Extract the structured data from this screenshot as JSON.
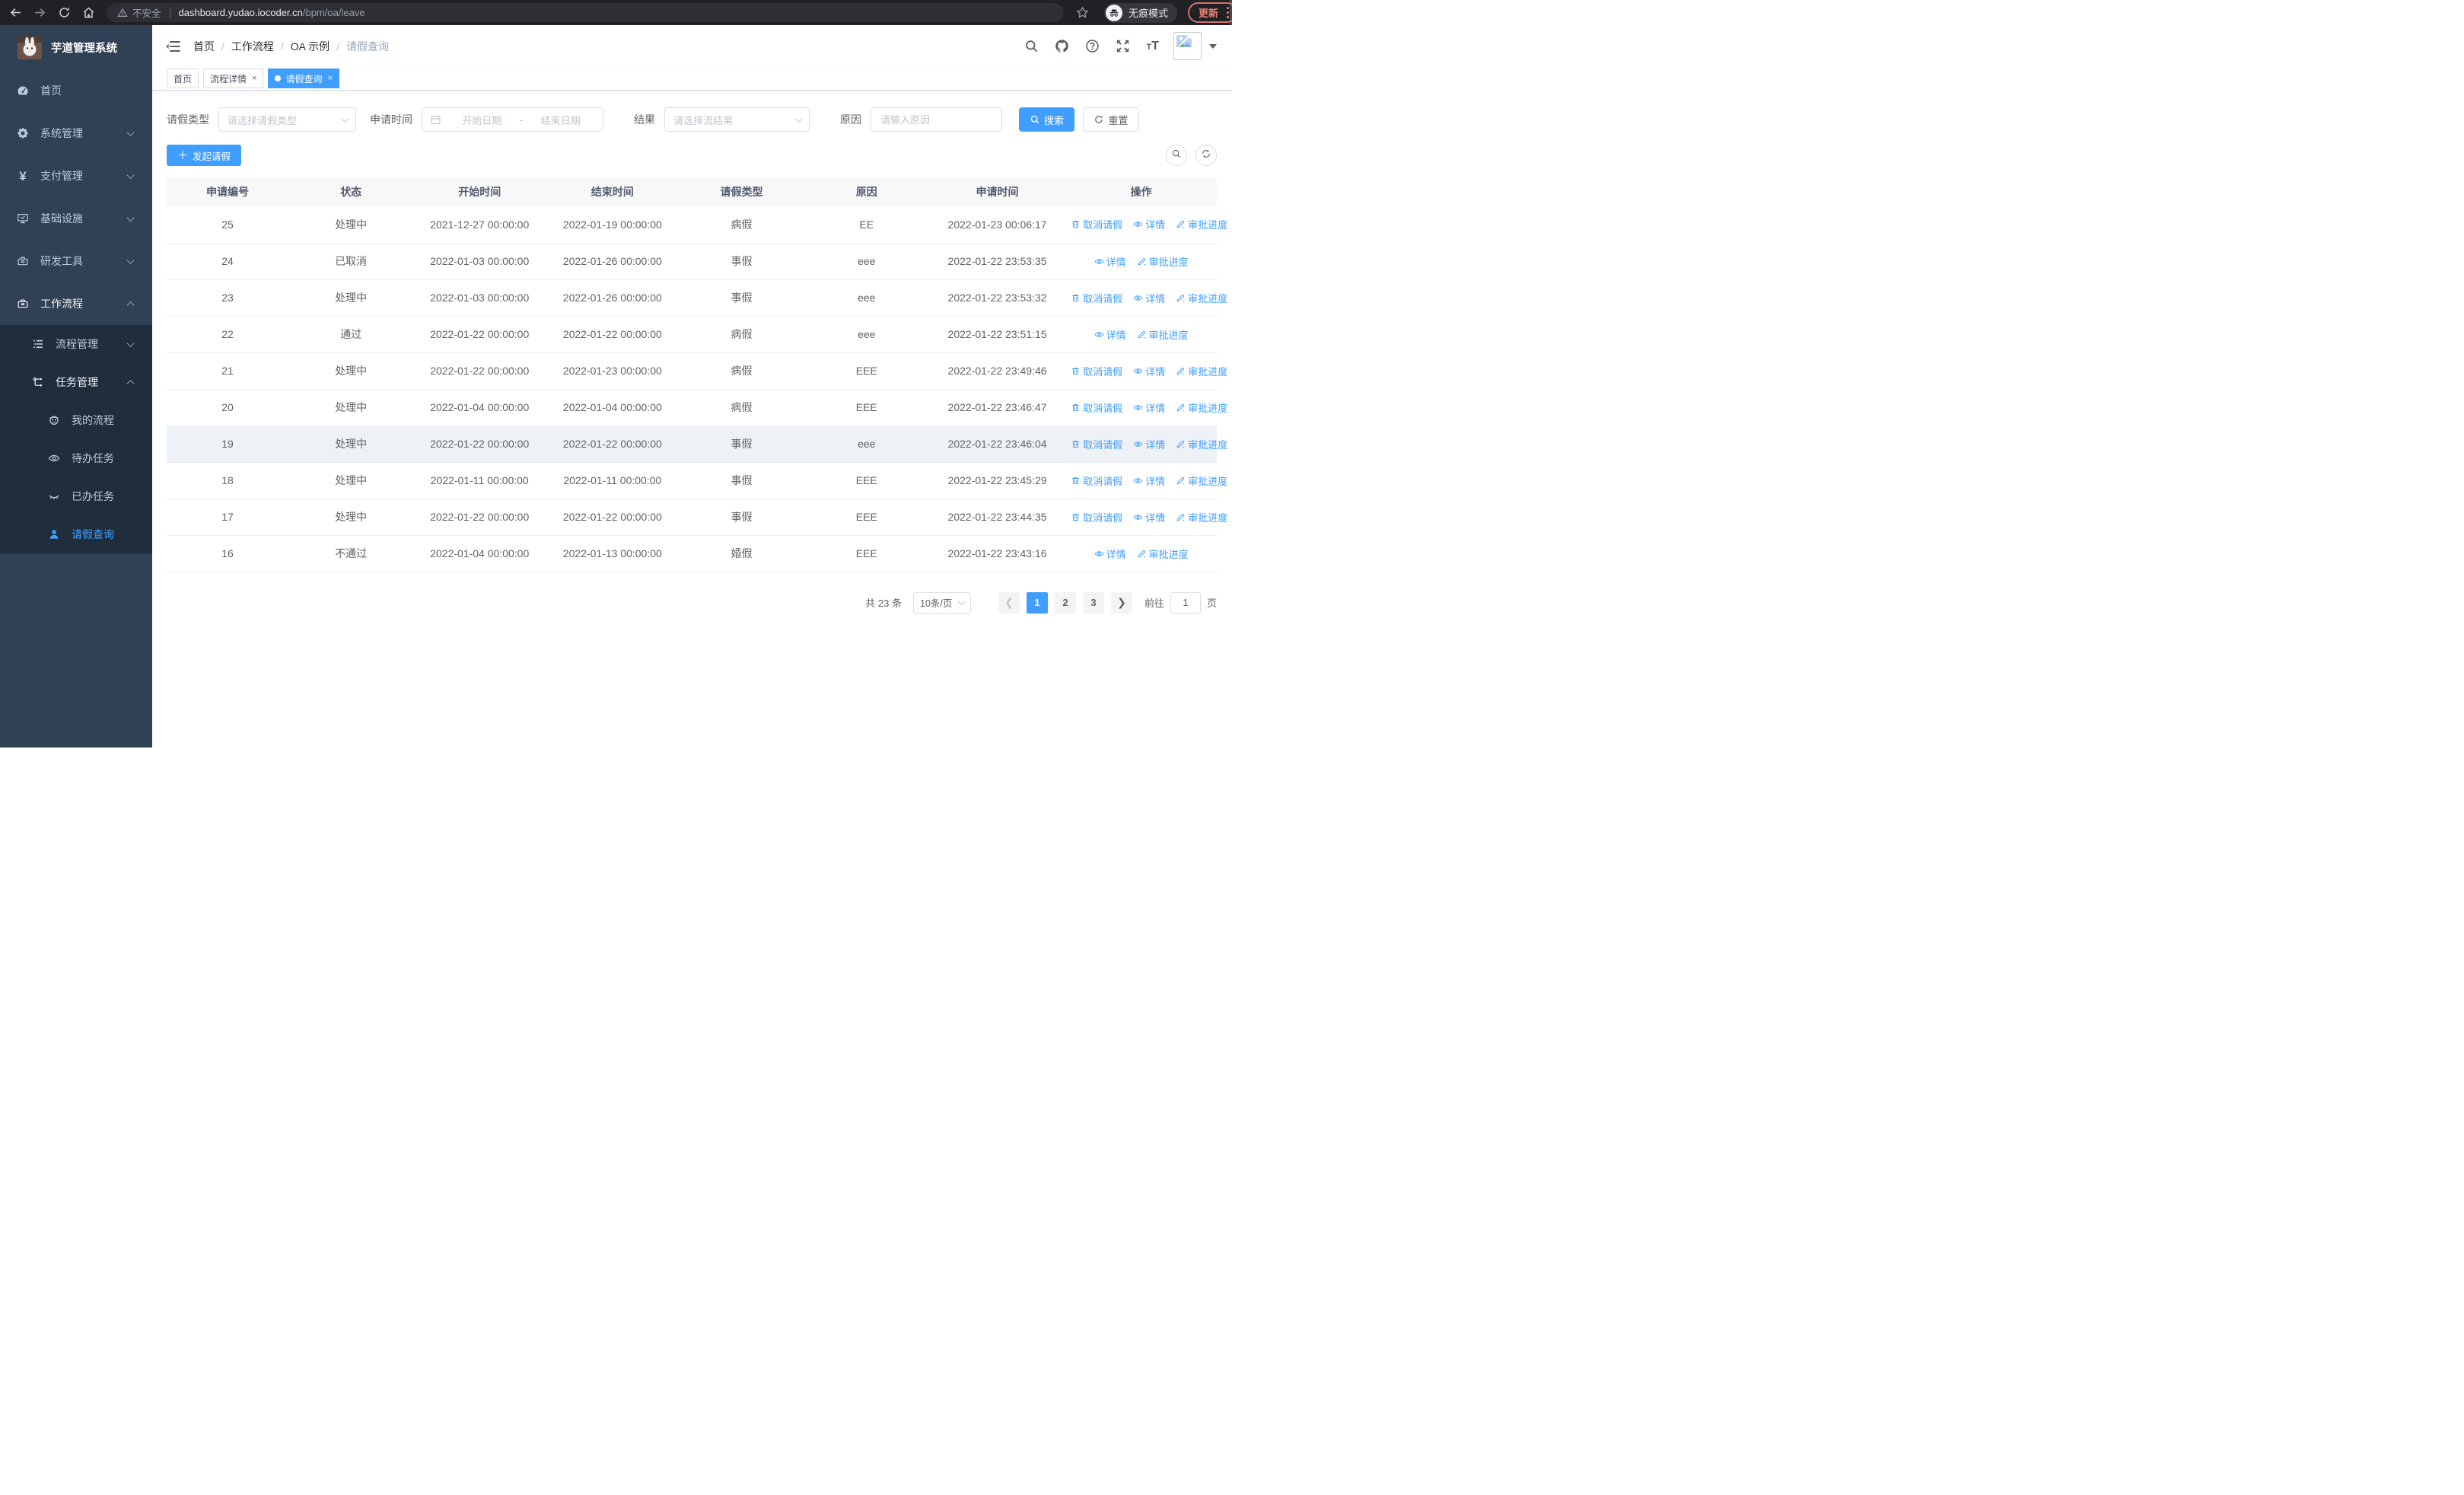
{
  "browser": {
    "security_chip": "不安全",
    "url_host": "dashboard.yudao.iocoder.cn",
    "url_path": "/bpm/oa/leave",
    "incognito_label": "无痕模式",
    "update_label": "更新"
  },
  "sidebar": {
    "title": "芋道管理系统",
    "menu": [
      {
        "label": "首页",
        "icon": "dashboard-icon"
      },
      {
        "label": "系统管理",
        "icon": "gear-icon",
        "chevron": "down"
      },
      {
        "label": "支付管理",
        "icon": "yen-icon",
        "chevron": "down"
      },
      {
        "label": "基础设施",
        "icon": "monitor-icon",
        "chevron": "down"
      },
      {
        "label": "研发工具",
        "icon": "toolbox-icon",
        "chevron": "down"
      },
      {
        "label": "工作流程",
        "icon": "briefcase-icon",
        "chevron": "up",
        "open": true,
        "children": [
          {
            "label": "流程管理",
            "icon": "list-icon",
            "chevron": "down"
          },
          {
            "label": "任务管理",
            "icon": "flow-icon",
            "chevron": "up",
            "open": true,
            "children": [
              {
                "label": "我的流程",
                "icon": "robot-icon"
              },
              {
                "label": "待办任务",
                "icon": "eye-icon"
              },
              {
                "label": "已办任务",
                "icon": "eye-closed-icon"
              },
              {
                "label": "请假查询",
                "icon": "user-icon",
                "active": true
              }
            ]
          }
        ]
      }
    ]
  },
  "header": {
    "breadcrumb": [
      {
        "label": "首页",
        "muted": false
      },
      {
        "label": "工作流程",
        "muted": false
      },
      {
        "label": "OA 示例",
        "muted": false
      },
      {
        "label": "请假查询",
        "muted": true
      }
    ]
  },
  "tabs": [
    {
      "label": "首页",
      "closable": false,
      "active": false
    },
    {
      "label": "流程详情",
      "closable": true,
      "active": false
    },
    {
      "label": "请假查询",
      "closable": true,
      "active": true
    }
  ],
  "filters": {
    "leave_type_label": "请假类型",
    "leave_type_placeholder": "请选择请假类型",
    "apply_time_label": "申请时间",
    "date_start_placeholder": "开始日期",
    "date_separator": "-",
    "date_end_placeholder": "结束日期",
    "result_label": "结果",
    "result_placeholder": "请选择流结果",
    "reason_label": "原因",
    "reason_placeholder": "请输入原因",
    "search_label": "搜索",
    "reset_label": "重置"
  },
  "toolbar": {
    "create_label": "发起请假"
  },
  "table": {
    "columns": [
      "申请编号",
      "状态",
      "开始时间",
      "结束时间",
      "请假类型",
      "原因",
      "申请时间",
      "操作"
    ],
    "action_labels": {
      "cancel": "取消请假",
      "detail": "详情",
      "progress": "审批进度"
    },
    "rows": [
      {
        "id": "25",
        "status": "处理中",
        "start": "2021-12-27 00:00:00",
        "end": "2022-01-19 00:00:00",
        "type": "病假",
        "reason": "EE",
        "applied": "2022-01-23 00:06:17",
        "actions": [
          "cancel",
          "detail",
          "progress"
        ],
        "highlight": false
      },
      {
        "id": "24",
        "status": "已取消",
        "start": "2022-01-03 00:00:00",
        "end": "2022-01-26 00:00:00",
        "type": "事假",
        "reason": "eee",
        "applied": "2022-01-22 23:53:35",
        "actions": [
          "detail",
          "progress"
        ],
        "highlight": false
      },
      {
        "id": "23",
        "status": "处理中",
        "start": "2022-01-03 00:00:00",
        "end": "2022-01-26 00:00:00",
        "type": "事假",
        "reason": "eee",
        "applied": "2022-01-22 23:53:32",
        "actions": [
          "cancel",
          "detail",
          "progress"
        ],
        "highlight": false
      },
      {
        "id": "22",
        "status": "通过",
        "start": "2022-01-22 00:00:00",
        "end": "2022-01-22 00:00:00",
        "type": "病假",
        "reason": "eee",
        "applied": "2022-01-22 23:51:15",
        "actions": [
          "detail",
          "progress"
        ],
        "highlight": false
      },
      {
        "id": "21",
        "status": "处理中",
        "start": "2022-01-22 00:00:00",
        "end": "2022-01-23 00:00:00",
        "type": "病假",
        "reason": "EEE",
        "applied": "2022-01-22 23:49:46",
        "actions": [
          "cancel",
          "detail",
          "progress"
        ],
        "highlight": false
      },
      {
        "id": "20",
        "status": "处理中",
        "start": "2022-01-04 00:00:00",
        "end": "2022-01-04 00:00:00",
        "type": "病假",
        "reason": "EEE",
        "applied": "2022-01-22 23:46:47",
        "actions": [
          "cancel",
          "detail",
          "progress"
        ],
        "highlight": false
      },
      {
        "id": "19",
        "status": "处理中",
        "start": "2022-01-22 00:00:00",
        "end": "2022-01-22 00:00:00",
        "type": "事假",
        "reason": "eee",
        "applied": "2022-01-22 23:46:04",
        "actions": [
          "cancel",
          "detail",
          "progress"
        ],
        "highlight": true
      },
      {
        "id": "18",
        "status": "处理中",
        "start": "2022-01-11 00:00:00",
        "end": "2022-01-11 00:00:00",
        "type": "事假",
        "reason": "EEE",
        "applied": "2022-01-22 23:45:29",
        "actions": [
          "cancel",
          "detail",
          "progress"
        ],
        "highlight": false
      },
      {
        "id": "17",
        "status": "处理中",
        "start": "2022-01-22 00:00:00",
        "end": "2022-01-22 00:00:00",
        "type": "事假",
        "reason": "EEE",
        "applied": "2022-01-22 23:44:35",
        "actions": [
          "cancel",
          "detail",
          "progress"
        ],
        "highlight": false
      },
      {
        "id": "16",
        "status": "不通过",
        "start": "2022-01-04 00:00:00",
        "end": "2022-01-13 00:00:00",
        "type": "婚假",
        "reason": "EEE",
        "applied": "2022-01-22 23:43:16",
        "actions": [
          "detail",
          "progress"
        ],
        "highlight": false
      }
    ]
  },
  "pagination": {
    "total_text": "共 23 条",
    "page_size": "10条/页",
    "pages": [
      "1",
      "2",
      "3"
    ],
    "active_page": "1",
    "goto_label": "前往",
    "goto_value": "1",
    "page_suffix": "页"
  },
  "colors": {
    "accent": "#409eff",
    "sidebar_bg": "#304156",
    "submenu_bg": "#1f2d3d"
  }
}
